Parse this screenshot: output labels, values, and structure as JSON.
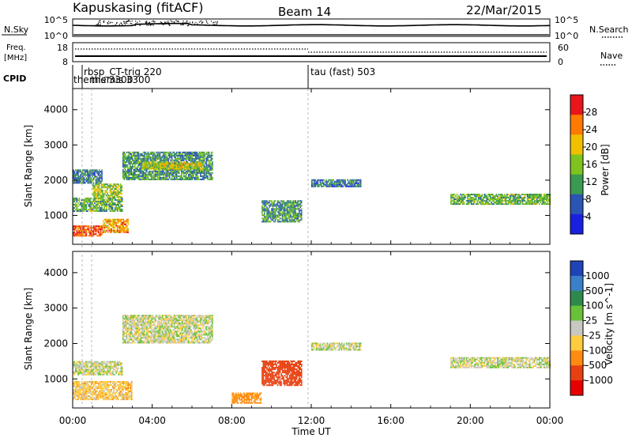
{
  "header": {
    "station": "Kapuskasing (fitACF)",
    "beam": "Beam 14",
    "date": "22/Mar/2015"
  },
  "panels": {
    "nsky": {
      "label": "N.Sky",
      "ticks_left": [
        "10^5",
        "10^0"
      ],
      "ticks_right": [
        "10^5",
        "10^0"
      ],
      "right_label": "N.Search"
    },
    "freq": {
      "label_line1": "Freq.",
      "label_line2": "[MHz]",
      "ticks_left": [
        "18",
        "8"
      ],
      "ticks_right": [
        "60",
        "0"
      ],
      "right_label": "Nave"
    },
    "cpid": {
      "label": "CPID",
      "modes": [
        {
          "name": "rbsp_CT-trig 220",
          "start": "00:50"
        },
        {
          "name": "themis 3300",
          "start": "00:00"
        },
        {
          "name": "themis 3300",
          "start": "00:50"
        },
        {
          "name": "tau (fast) 503",
          "start": "12:00"
        }
      ]
    },
    "power": {
      "ylabel": "Slant Range [km]",
      "cbar_label": "Power [dB]",
      "cbar_ticks": [
        "28",
        "24",
        "20",
        "16",
        "12",
        "8",
        "4"
      ],
      "cbar_colors": [
        "#e8161a",
        "#ff7a00",
        "#f0c000",
        "#7fc31e",
        "#3a9a4f",
        "#2a55b5",
        "#1a20e0"
      ]
    },
    "velocity": {
      "ylabel": "Slant Range [km]",
      "cbar_label": "Velocity [m s^-1]",
      "cbar_ticks": [
        "1000",
        "500",
        "100",
        "25",
        "-25",
        "-100",
        "-500",
        "-1000"
      ],
      "cbar_colors": [
        "#1f44b8",
        "#3a7fc8",
        "#2e8a4c",
        "#69c13a",
        "#c8c8c0",
        "#ffcc40",
        "#ff8c10",
        "#e84010",
        "#e80000"
      ]
    }
  },
  "axes": {
    "xlabel": "Time UT",
    "xticks": [
      "00:00",
      "04:00",
      "08:00",
      "12:00",
      "16:00",
      "20:00",
      "00:00"
    ],
    "yticks": [
      "1000",
      "2000",
      "3000",
      "4000"
    ]
  },
  "chart_data": [
    {
      "type": "heatmap",
      "title": "Power",
      "xlabel": "Time UT",
      "ylabel": "Slant Range [km]",
      "xlim": [
        "00:00",
        "24:00"
      ],
      "ylim": [
        180,
        4600
      ],
      "colorbar": {
        "label": "Power [dB]",
        "range": [
          0,
          30
        ]
      },
      "regions": [
        {
          "t": [
            0.0,
            1.5
          ],
          "r": [
            400,
            700
          ],
          "value": 26
        },
        {
          "t": [
            1.5,
            2.8
          ],
          "r": [
            500,
            900
          ],
          "value": 22
        },
        {
          "t": [
            0.0,
            2.5
          ],
          "r": [
            1100,
            1500
          ],
          "value": 14
        },
        {
          "t": [
            1.0,
            2.5
          ],
          "r": [
            1500,
            1900
          ],
          "value": 16
        },
        {
          "t": [
            2.5,
            7.0
          ],
          "r": [
            2000,
            2800
          ],
          "value": 12
        },
        {
          "t": [
            3.5,
            6.5
          ],
          "r": [
            2300,
            2500
          ],
          "value": 18
        },
        {
          "t": [
            0.0,
            1.5
          ],
          "r": [
            1900,
            2300
          ],
          "value": 10
        },
        {
          "t": [
            9.5,
            11.5
          ],
          "r": [
            800,
            1400
          ],
          "value": 12
        },
        {
          "t": [
            12.0,
            14.5
          ],
          "r": [
            1800,
            2000
          ],
          "value": 10
        },
        {
          "t": [
            19.0,
            24.0
          ],
          "r": [
            1300,
            1600
          ],
          "value": 14
        }
      ]
    },
    {
      "type": "heatmap",
      "title": "Velocity",
      "xlabel": "Time UT",
      "ylabel": "Slant Range [km]",
      "xlim": [
        "00:00",
        "24:00"
      ],
      "ylim": [
        180,
        4600
      ],
      "colorbar": {
        "label": "Velocity [m s^-1]",
        "range": [
          -1000,
          1000
        ]
      },
      "regions": [
        {
          "t": [
            0.0,
            3.0
          ],
          "r": [
            400,
            900
          ],
          "value": -60
        },
        {
          "t": [
            0.0,
            2.5
          ],
          "r": [
            1100,
            1500
          ],
          "value": 0
        },
        {
          "t": [
            2.5,
            7.0
          ],
          "r": [
            2000,
            2800
          ],
          "value": 0
        },
        {
          "t": [
            9.5,
            11.5
          ],
          "r": [
            800,
            1500
          ],
          "value": -400
        },
        {
          "t": [
            8.0,
            9.5
          ],
          "r": [
            300,
            600
          ],
          "value": -150
        },
        {
          "t": [
            12.0,
            14.5
          ],
          "r": [
            1800,
            2000
          ],
          "value": 0
        },
        {
          "t": [
            19.0,
            24.0
          ],
          "r": [
            1300,
            1600
          ],
          "value": 0
        }
      ]
    }
  ]
}
